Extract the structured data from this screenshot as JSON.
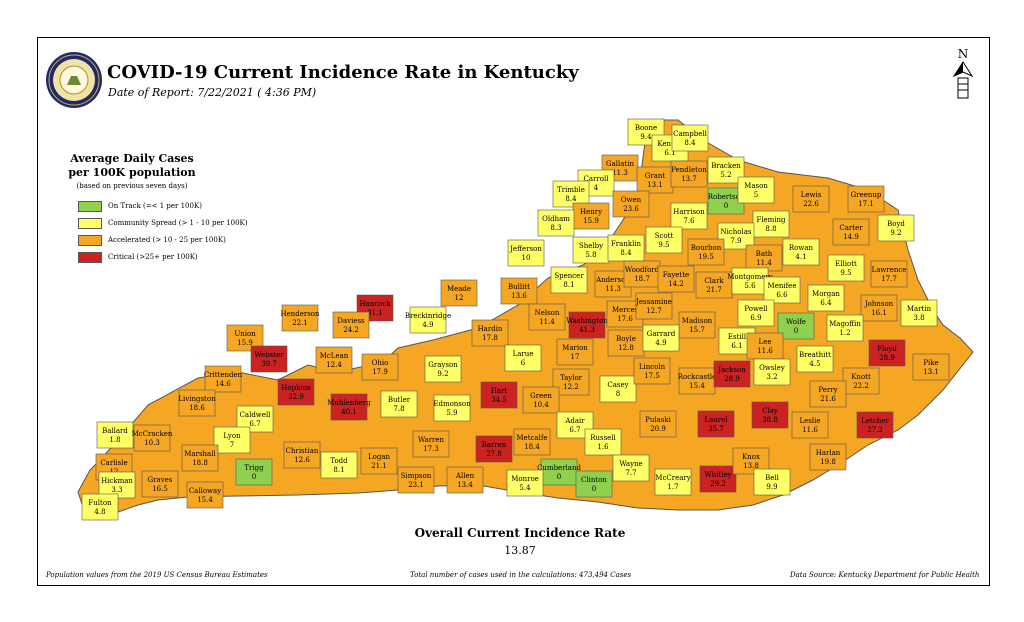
{
  "header": {
    "title": "COVID-19 Current Incidence Rate in Kentucky",
    "date": "Date of Report: 7/22/2021 ( 4:36 PM)"
  },
  "north_label": "N",
  "legend": {
    "title_line1": "Average Daily Cases",
    "title_line2": "per 100K population",
    "note": "(based on previous seven days)",
    "items": [
      {
        "label": "On Track (=< 1 per 100K)",
        "color": "#8fd14f"
      },
      {
        "label": "Community Spread (> 1 - 10 per 100K)",
        "color": "#ffff66"
      },
      {
        "label": "Accelerated (> 10 - 25 per 100K)",
        "color": "#f5a623"
      },
      {
        "label": "Critical (>25+ per 100K)",
        "color": "#cc2222"
      }
    ]
  },
  "colors": {
    "on_track": "#8fd14f",
    "community": "#ffff66",
    "accelerated": "#f5a623",
    "critical": "#cc2222",
    "border": "#555555"
  },
  "counties": [
    {
      "name": "Boone",
      "value": "9.4",
      "cat": "community"
    },
    {
      "name": "Kenton",
      "value": "6.1",
      "cat": "community"
    },
    {
      "name": "Campbell",
      "value": "8.4",
      "cat": "community"
    },
    {
      "name": "Gallatin",
      "value": "11.3",
      "cat": "accelerated"
    },
    {
      "name": "Grant",
      "value": "13.1",
      "cat": "accelerated"
    },
    {
      "name": "Pendleton",
      "value": "13.7",
      "cat": "accelerated"
    },
    {
      "name": "Bracken",
      "value": "5.2",
      "cat": "community"
    },
    {
      "name": "Carroll",
      "value": "4",
      "cat": "community"
    },
    {
      "name": "Robertson",
      "value": "0",
      "cat": "on_track"
    },
    {
      "name": "Mason",
      "value": "5",
      "cat": "community"
    },
    {
      "name": "Lewis",
      "value": "22.6",
      "cat": "accelerated"
    },
    {
      "name": "Greenup",
      "value": "17.1",
      "cat": "accelerated"
    },
    {
      "name": "Boyd",
      "value": "9.2",
      "cat": "community"
    },
    {
      "name": "Trimble",
      "value": "8.4",
      "cat": "community"
    },
    {
      "name": "Henry",
      "value": "15.9",
      "cat": "accelerated"
    },
    {
      "name": "Owen",
      "value": "23.6",
      "cat": "accelerated"
    },
    {
      "name": "Harrison",
      "value": "7.6",
      "cat": "community"
    },
    {
      "name": "Fleming",
      "value": "8.8",
      "cat": "community"
    },
    {
      "name": "Carter",
      "value": "14.9",
      "cat": "accelerated"
    },
    {
      "name": "Oldham",
      "value": "8.3",
      "cat": "community"
    },
    {
      "name": "Scott",
      "value": "9.5",
      "cat": "community"
    },
    {
      "name": "Nicholas",
      "value": "7.9",
      "cat": "community"
    },
    {
      "name": "Shelby",
      "value": "5.8",
      "cat": "community"
    },
    {
      "name": "Franklin",
      "value": "8.4",
      "cat": "community"
    },
    {
      "name": "Bourbon",
      "value": "19.5",
      "cat": "accelerated"
    },
    {
      "name": "Bath",
      "value": "11.4",
      "cat": "accelerated"
    },
    {
      "name": "Rowan",
      "value": "4.1",
      "cat": "community"
    },
    {
      "name": "Elliott",
      "value": "9.5",
      "cat": "community"
    },
    {
      "name": "Lawrence",
      "value": "17.7",
      "cat": "accelerated"
    },
    {
      "name": "Jefferson",
      "value": "10",
      "cat": "community"
    },
    {
      "name": "Spencer",
      "value": "8.1",
      "cat": "community"
    },
    {
      "name": "Anderson",
      "value": "11.3",
      "cat": "accelerated"
    },
    {
      "name": "Woodford",
      "value": "18.7",
      "cat": "accelerated"
    },
    {
      "name": "Fayette",
      "value": "14.2",
      "cat": "accelerated"
    },
    {
      "name": "Clark",
      "value": "21.7",
      "cat": "accelerated"
    },
    {
      "name": "Montgomery",
      "value": "5.6",
      "cat": "community"
    },
    {
      "name": "Menifee",
      "value": "6.6",
      "cat": "community"
    },
    {
      "name": "Morgan",
      "value": "6.4",
      "cat": "community"
    },
    {
      "name": "Johnson",
      "value": "16.1",
      "cat": "accelerated"
    },
    {
      "name": "Martin",
      "value": "3.8",
      "cat": "community"
    },
    {
      "name": "Bullitt",
      "value": "13.6",
      "cat": "accelerated"
    },
    {
      "name": "Nelson",
      "value": "11.4",
      "cat": "accelerated"
    },
    {
      "name": "Washington",
      "value": "41.3",
      "cat": "critical"
    },
    {
      "name": "Mercer",
      "value": "17.6",
      "cat": "accelerated"
    },
    {
      "name": "Jessamine",
      "value": "12.7",
      "cat": "accelerated"
    },
    {
      "name": "Madison",
      "value": "15.7",
      "cat": "accelerated"
    },
    {
      "name": "Powell",
      "value": "6.9",
      "cat": "community"
    },
    {
      "name": "Wolfe",
      "value": "0",
      "cat": "on_track"
    },
    {
      "name": "Magoffin",
      "value": "1.2",
      "cat": "community"
    },
    {
      "name": "Floyd",
      "value": "28.9",
      "cat": "critical"
    },
    {
      "name": "Pike",
      "value": "13.1",
      "cat": "accelerated"
    },
    {
      "name": "Meade",
      "value": "12",
      "cat": "accelerated"
    },
    {
      "name": "Hancock",
      "value": "31.1",
      "cat": "critical"
    },
    {
      "name": "Breckinridge",
      "value": "4.9",
      "cat": "community"
    },
    {
      "name": "Hardin",
      "value": "17.8",
      "cat": "accelerated"
    },
    {
      "name": "Larue",
      "value": "6",
      "cat": "community"
    },
    {
      "name": "Marion",
      "value": "17",
      "cat": "accelerated"
    },
    {
      "name": "Boyle",
      "value": "12.8",
      "cat": "accelerated"
    },
    {
      "name": "Garrard",
      "value": "4.9",
      "cat": "community"
    },
    {
      "name": "Estill",
      "value": "6.1",
      "cat": "community"
    },
    {
      "name": "Lee",
      "value": "11.6",
      "cat": "accelerated"
    },
    {
      "name": "Breathitt",
      "value": "4.5",
      "cat": "community"
    },
    {
      "name": "Knott",
      "value": "22.2",
      "cat": "accelerated"
    },
    {
      "name": "Henderson",
      "value": "22.1",
      "cat": "accelerated"
    },
    {
      "name": "Daviess",
      "value": "24.2",
      "cat": "accelerated"
    },
    {
      "name": "Union",
      "value": "15.9",
      "cat": "accelerated"
    },
    {
      "name": "Webster",
      "value": "39.7",
      "cat": "critical"
    },
    {
      "name": "McLean",
      "value": "12.4",
      "cat": "accelerated"
    },
    {
      "name": "Ohio",
      "value": "17.9",
      "cat": "accelerated"
    },
    {
      "name": "Grayson",
      "value": "9.2",
      "cat": "community"
    },
    {
      "name": "Hart",
      "value": "34.5",
      "cat": "critical"
    },
    {
      "name": "Taylor",
      "value": "12.2",
      "cat": "accelerated"
    },
    {
      "name": "Casey",
      "value": "8",
      "cat": "community"
    },
    {
      "name": "Lincoln",
      "value": "17.5",
      "cat": "accelerated"
    },
    {
      "name": "Rockcastle",
      "value": "15.4",
      "cat": "accelerated"
    },
    {
      "name": "Jackson",
      "value": "28.9",
      "cat": "critical"
    },
    {
      "name": "Owsley",
      "value": "3.2",
      "cat": "community"
    },
    {
      "name": "Perry",
      "value": "21.6",
      "cat": "accelerated"
    },
    {
      "name": "Letcher",
      "value": "27.2",
      "cat": "critical"
    },
    {
      "name": "Crittenden",
      "value": "14.6",
      "cat": "accelerated"
    },
    {
      "name": "Hopkins",
      "value": "32.9",
      "cat": "critical"
    },
    {
      "name": "Muhlenberg",
      "value": "40.1",
      "cat": "critical"
    },
    {
      "name": "Butler",
      "value": "7.8",
      "cat": "community"
    },
    {
      "name": "Edmonson",
      "value": "5.9",
      "cat": "community"
    },
    {
      "name": "Green",
      "value": "10.4",
      "cat": "accelerated"
    },
    {
      "name": "Adair",
      "value": "6.7",
      "cat": "community"
    },
    {
      "name": "Russell",
      "value": "1.6",
      "cat": "community"
    },
    {
      "name": "Pulaski",
      "value": "20.9",
      "cat": "accelerated"
    },
    {
      "name": "Laurel",
      "value": "35.7",
      "cat": "critical"
    },
    {
      "name": "Clay",
      "value": "38.8",
      "cat": "critical"
    },
    {
      "name": "Leslie",
      "value": "11.6",
      "cat": "accelerated"
    },
    {
      "name": "Harlan",
      "value": "19.8",
      "cat": "accelerated"
    },
    {
      "name": "Livingston",
      "value": "18.6",
      "cat": "accelerated"
    },
    {
      "name": "Caldwell",
      "value": "6.7",
      "cat": "community"
    },
    {
      "name": "Lyon",
      "value": "7",
      "cat": "community"
    },
    {
      "name": "Christian",
      "value": "12.6",
      "cat": "accelerated"
    },
    {
      "name": "Todd",
      "value": "8.1",
      "cat": "community"
    },
    {
      "name": "Logan",
      "value": "21.1",
      "cat": "accelerated"
    },
    {
      "name": "Warren",
      "value": "17.3",
      "cat": "accelerated"
    },
    {
      "name": "Barren",
      "value": "27.8",
      "cat": "critical"
    },
    {
      "name": "Metcalfe",
      "value": "18.4",
      "cat": "accelerated"
    },
    {
      "name": "Cumberland",
      "value": "0",
      "cat": "on_track"
    },
    {
      "name": "Clinton",
      "value": "0",
      "cat": "on_track"
    },
    {
      "name": "Wayne",
      "value": "7.7",
      "cat": "community"
    },
    {
      "name": "McCreary",
      "value": "1.7",
      "cat": "community"
    },
    {
      "name": "Whitley",
      "value": "29.2",
      "cat": "critical"
    },
    {
      "name": "Knox",
      "value": "13.8",
      "cat": "accelerated"
    },
    {
      "name": "Bell",
      "value": "9.9",
      "cat": "community"
    },
    {
      "name": "Ballard",
      "value": "1.8",
      "cat": "community"
    },
    {
      "name": "McCracken",
      "value": "10.3",
      "cat": "accelerated"
    },
    {
      "name": "Marshall",
      "value": "18.8",
      "cat": "accelerated"
    },
    {
      "name": "Carlisle",
      "value": "12",
      "cat": "accelerated"
    },
    {
      "name": "Trigg",
      "value": "0",
      "cat": "on_track"
    },
    {
      "name": "Hickman",
      "value": "3.3",
      "cat": "community"
    },
    {
      "name": "Graves",
      "value": "16.5",
      "cat": "accelerated"
    },
    {
      "name": "Calloway",
      "value": "15.4",
      "cat": "accelerated"
    },
    {
      "name": "Fulton",
      "value": "4.8",
      "cat": "community"
    },
    {
      "name": "Simpson",
      "value": "23.1",
      "cat": "accelerated"
    },
    {
      "name": "Allen",
      "value": "13.4",
      "cat": "accelerated"
    },
    {
      "name": "Monroe",
      "value": "5.4",
      "cat": "community"
    }
  ],
  "overall": {
    "label": "Overall Current Incidence Rate",
    "value": "13.87"
  },
  "footer": {
    "left": "Population values from the 2019 US Census Bureau Estimates",
    "center": "Total number of cases used in the calculations: 473,494 Cases",
    "right": "Data Source: Kentucky Department for Public Health"
  }
}
